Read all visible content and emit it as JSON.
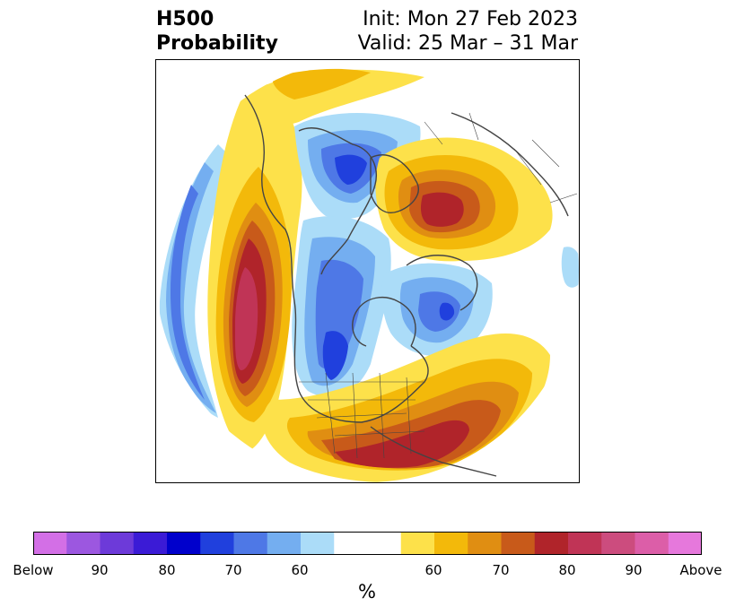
{
  "title": {
    "left_line1": "H500",
    "left_line2": "Probability",
    "right_line1": "Init: Mon 27 Feb 2023",
    "right_line2": "Valid: 25 Mar – 31 Mar"
  },
  "colorbar": {
    "unit": "%",
    "colors": [
      "#d36fe6",
      "#9c57e0",
      "#6d3ad9",
      "#3b1bd6",
      "#0000cc",
      "#2040dd",
      "#4e78e6",
      "#74aef0",
      "#abdcf8",
      "#ffffff",
      "#ffffff",
      "#fde14a",
      "#f3b90a",
      "#e08e12",
      "#c85a1a",
      "#b0242a",
      "#c03456",
      "#cc4c7e",
      "#dc5ea8",
      "#e678dc"
    ],
    "ticks": [
      "Below",
      "90",
      "80",
      "70",
      "60",
      "60",
      "70",
      "80",
      "90",
      "Above"
    ]
  },
  "map": {
    "projection": "north-polar-stereographic",
    "features": [
      "coastlines",
      "country-borders",
      "us-state-borders",
      "canada-province-borders"
    ]
  }
}
